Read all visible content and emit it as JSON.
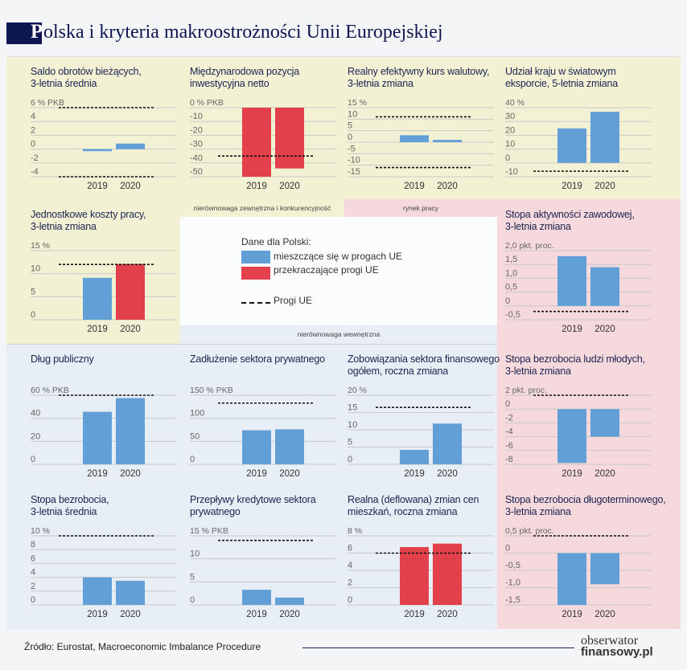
{
  "header": {
    "title_initial": "P",
    "title_rest": "olska i kryteria makroostrożności Unii Europejskiej"
  },
  "colors": {
    "within": "#629fd6",
    "exceeds": "#e2404a",
    "external_bg": "#f2f1d4",
    "labour_bg": "#f5d9dc",
    "internal_bg": "#e8eef5"
  },
  "legend": {
    "heading": "Dane dla Polski:",
    "within_label": "mieszczące się w progach UE",
    "exceeds_label": "przekraczające progi UE",
    "threshold_label": "Progi UE",
    "external_strip": "nierównowaga zewnętrzna i konkurencyjność",
    "labour_strip": "rynek pracy",
    "internal_strip": "nierównowaga wewnętrzna"
  },
  "footer": {
    "source": "Źródło: Eurostat, Macroeconomic Imbalance Procedure",
    "logo_line1": "obserwator",
    "logo_line2": "finansowy.pl"
  },
  "chart_data": [
    {
      "type": "bar",
      "title": "Saldo obrotów bieżących,\n3-letnia średnia",
      "unit": "% PKB",
      "ticks": [
        "6",
        "4",
        "2",
        "0",
        "-2",
        "-4"
      ],
      "categories": [
        "2019",
        "2020"
      ],
      "values": [
        -0.3,
        0.8
      ],
      "exceeds": [
        false,
        false
      ],
      "thresholds": [
        6,
        -4
      ]
    },
    {
      "type": "bar",
      "title": "Międzynarodowa pozycja\ninwestycyjna netto",
      "unit": "% PKB",
      "ticks": [
        "0",
        "-10",
        "-20",
        "-30",
        "-40",
        "-50"
      ],
      "categories": [
        "2019",
        "2020"
      ],
      "values": [
        -50,
        -44
      ],
      "exceeds": [
        true,
        true
      ],
      "thresholds": [
        -35
      ]
    },
    {
      "type": "bar",
      "title": "Realny efektywny kurs walutowy,\n3-letnia zmiana",
      "unit": "%",
      "ticks": [
        "15",
        "10",
        "5",
        "0",
        "-5",
        "-10",
        "-15"
      ],
      "categories": [
        "2019",
        "2020"
      ],
      "values": [
        3,
        1
      ],
      "exceeds": [
        false,
        false
      ],
      "thresholds": [
        11,
        -11
      ]
    },
    {
      "type": "bar",
      "title": "Udział kraju w światowym\neksporcie, 5-letnia zmiana",
      "unit": "%",
      "ticks": [
        "40",
        "30",
        "20",
        "10",
        "0",
        "-10"
      ],
      "categories": [
        "2019",
        "2020"
      ],
      "values": [
        25,
        37
      ],
      "exceeds": [
        false,
        false
      ],
      "thresholds": [
        -6
      ]
    },
    {
      "type": "bar",
      "title": "Jednostkowe koszty pracy,\n3-letnia zmiana",
      "unit": "%",
      "ticks": [
        "15",
        "10",
        "5",
        "0"
      ],
      "categories": [
        "2019",
        "2020"
      ],
      "values": [
        9.1,
        12.1
      ],
      "exceeds": [
        false,
        true
      ],
      "thresholds": [
        12
      ]
    },
    {
      "type": "bar",
      "title": "Stopa aktywności zawodowej,\n3-letnia zmiana",
      "unit": "pkt. proc.",
      "ticks": [
        "2,0",
        "1,5",
        "1,0",
        "0,5",
        "0",
        "-0,5"
      ],
      "categories": [
        "2019",
        "2020"
      ],
      "values": [
        1.8,
        1.4
      ],
      "exceeds": [
        false,
        false
      ],
      "thresholds": [
        -0.2
      ]
    },
    {
      "type": "bar",
      "title": "Dług publiczny",
      "unit": "% PKB",
      "ticks": [
        "60",
        "40",
        "20",
        "0"
      ],
      "categories": [
        "2019",
        "2020"
      ],
      "values": [
        45.6,
        57.5
      ],
      "exceeds": [
        false,
        false
      ],
      "thresholds": [
        60
      ]
    },
    {
      "type": "bar",
      "title": "Zadłużenie sektora prywatnego",
      "unit": "% PKB",
      "ticks": [
        "150",
        "100",
        "50",
        "0"
      ],
      "categories": [
        "2019",
        "2020"
      ],
      "values": [
        74,
        76
      ],
      "exceeds": [
        false,
        false
      ],
      "thresholds": [
        133
      ]
    },
    {
      "type": "bar",
      "title": "Zobowiązania sektora finansowego\nogółem, roczna zmiana",
      "unit": "%",
      "ticks": [
        "20",
        "15",
        "10",
        "5",
        "0"
      ],
      "categories": [
        "2019",
        "2020"
      ],
      "values": [
        4.2,
        11.8
      ],
      "exceeds": [
        false,
        false
      ],
      "thresholds": [
        16.5
      ]
    },
    {
      "type": "bar",
      "title": "Stopa bezrobocia ludzi młodych,\n3-letnia zmiana",
      "unit": "pkt. proc.",
      "ticks": [
        "2",
        "0",
        "-2",
        "-4",
        "-6",
        "-8"
      ],
      "categories": [
        "2019",
        "2020"
      ],
      "values": [
        -7.8,
        -4.0
      ],
      "exceeds": [
        false,
        false
      ],
      "thresholds": [
        2
      ]
    },
    {
      "type": "bar",
      "title": "Stopa bezrobocia,\n3-letnia średnia",
      "unit": "%",
      "ticks": [
        "10",
        "8",
        "6",
        "4",
        "2",
        "0"
      ],
      "categories": [
        "2019",
        "2020"
      ],
      "values": [
        4.0,
        3.5
      ],
      "exceeds": [
        false,
        false
      ],
      "thresholds": [
        10
      ]
    },
    {
      "type": "bar",
      "title": "Przepływy kredytowe sektora\nprywatnego",
      "unit": "% PKB",
      "ticks": [
        "15",
        "10",
        "5",
        "0"
      ],
      "categories": [
        "2019",
        "2020"
      ],
      "values": [
        3.3,
        1.6
      ],
      "exceeds": [
        false,
        false
      ],
      "thresholds": [
        14
      ]
    },
    {
      "type": "bar",
      "title": "Realna (deflowana) zmian cen\nmieszkań, roczna zmiana",
      "unit": "%",
      "ticks": [
        "8",
        "6",
        "4",
        "2",
        "0"
      ],
      "categories": [
        "2019",
        "2020"
      ],
      "values": [
        6.7,
        7.1
      ],
      "exceeds": [
        true,
        true
      ],
      "thresholds": [
        6
      ]
    },
    {
      "type": "bar",
      "title": "Stopa bezrobocia długoterminowego,\n3-letnia zmiana",
      "unit": "pkt. proc.",
      "ticks": [
        "0,5",
        "0",
        "-0,5",
        "-1,0",
        "-1,5"
      ],
      "categories": [
        "2019",
        "2020"
      ],
      "values": [
        -1.5,
        -0.9
      ],
      "exceeds": [
        false,
        false
      ],
      "thresholds": [
        0.5
      ]
    }
  ]
}
